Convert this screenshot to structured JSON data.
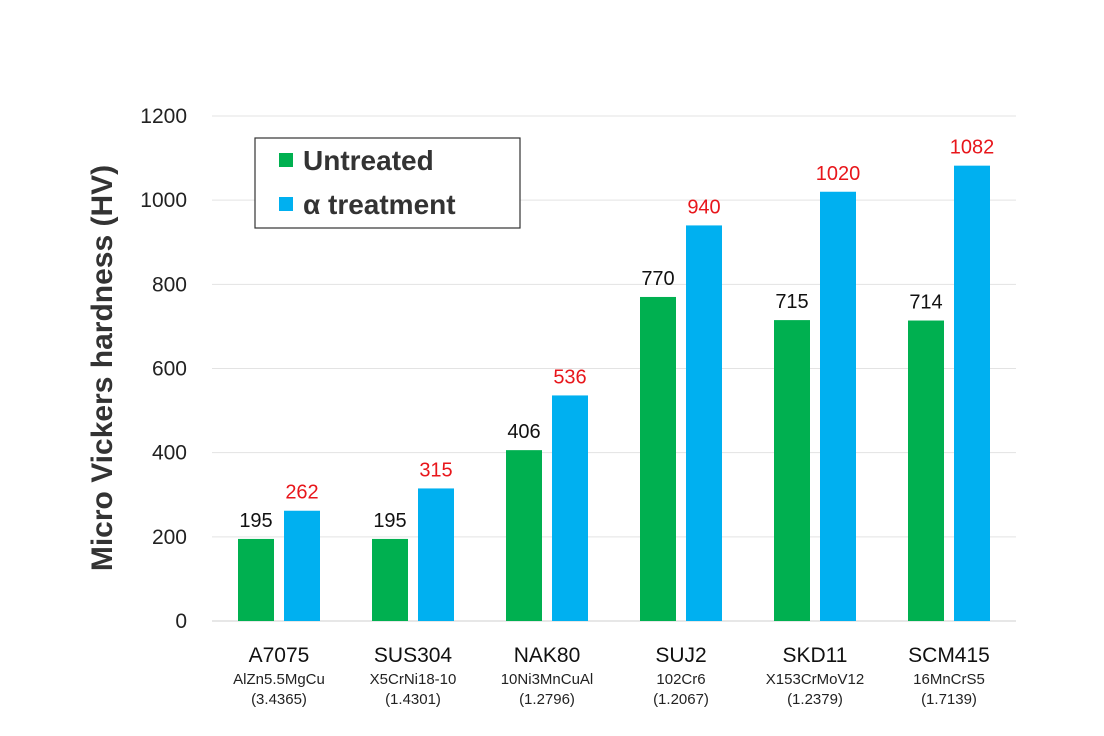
{
  "chart_data": {
    "type": "bar",
    "title": "",
    "xlabel": "",
    "ylabel": "Micro Vickers hardness (HV)",
    "ylim": [
      0,
      1200
    ],
    "yticks": [
      "0",
      "200",
      "400",
      "600",
      "800",
      "1000",
      "1200"
    ],
    "grid": true,
    "legend_position": "top-left",
    "categories": [
      {
        "name": "A7075",
        "alloy": "AlZn5.5MgCu",
        "number": "(3.4365)"
      },
      {
        "name": "SUS304",
        "alloy": "X5CrNi18-10",
        "number": "(1.4301)"
      },
      {
        "name": "NAK80",
        "alloy": "10Ni3MnCuAl",
        "number": "(1.2796)"
      },
      {
        "name": "SUJ2",
        "alloy": "102Cr6",
        "number": "(1.2067)"
      },
      {
        "name": "SKD11",
        "alloy": "X153CrMoV12",
        "number": "(1.2379)"
      },
      {
        "name": "SCM415",
        "alloy": "16MnCrS5",
        "number": "(1.7139)"
      }
    ],
    "series": [
      {
        "name": "Untreated",
        "color": "#00b050",
        "label_color": "#111111",
        "values": [
          195,
          195,
          406,
          770,
          715,
          714
        ]
      },
      {
        "name": "α treatment",
        "color": "#00b0f0",
        "label_color": "#e8161b",
        "values": [
          262,
          315,
          536,
          940,
          1020,
          1082
        ]
      }
    ]
  }
}
